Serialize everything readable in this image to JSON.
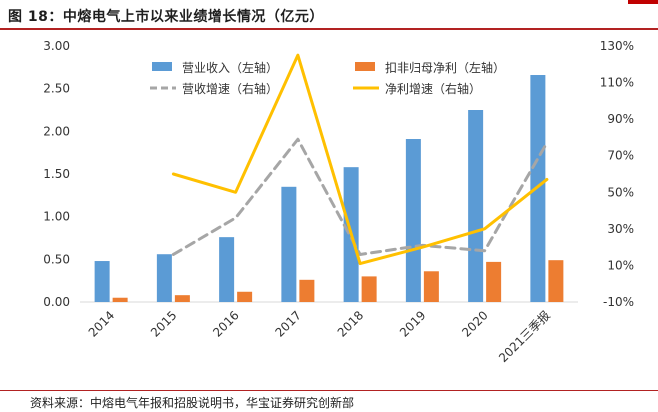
{
  "title": "图 18：中熔电气上市以来业绩增长情况（亿元）",
  "source": "资料来源：中熔电气年报和招股说明书，华宝证券研究创新部",
  "colors": {
    "revenue_bar": "#5b9bd5",
    "net_bar": "#ed7d31",
    "revenue_growth": "#a6a6a6",
    "net_growth": "#ffc000",
    "accent": "#b22222"
  },
  "chart_data": {
    "type": "bar",
    "categories": [
      "2014",
      "2015",
      "2016",
      "2017",
      "2018",
      "2019",
      "2020",
      "2021三季报"
    ],
    "y_left": {
      "range": [
        0,
        3.0
      ],
      "ticks": [
        "0.00",
        "0.50",
        "1.00",
        "1.50",
        "2.00",
        "2.50",
        "3.00"
      ]
    },
    "y_right": {
      "range": [
        -10,
        130
      ],
      "ticks": [
        "-10%",
        "10%",
        "30%",
        "50%",
        "70%",
        "90%",
        "110%",
        "130%"
      ]
    },
    "legend_placement": "top",
    "series": [
      {
        "name": "营业收入（左轴）",
        "kind": "bar",
        "axis": "left",
        "values": [
          0.48,
          0.56,
          0.76,
          1.35,
          1.58,
          1.91,
          2.25,
          2.66
        ]
      },
      {
        "name": "扣非归母净利（左轴）",
        "kind": "bar",
        "axis": "left",
        "values": [
          0.05,
          0.08,
          0.12,
          0.26,
          0.3,
          0.36,
          0.47,
          0.49
        ]
      },
      {
        "name": "营收增速（右轴）",
        "kind": "line",
        "style": "dashed",
        "axis": "right",
        "values": [
          null,
          16,
          36,
          79,
          16,
          21,
          18,
          77
        ]
      },
      {
        "name": "净利增速（右轴）",
        "kind": "line",
        "style": "solid",
        "axis": "right",
        "values": [
          null,
          60,
          50,
          125,
          11,
          20,
          30,
          57
        ]
      }
    ]
  }
}
